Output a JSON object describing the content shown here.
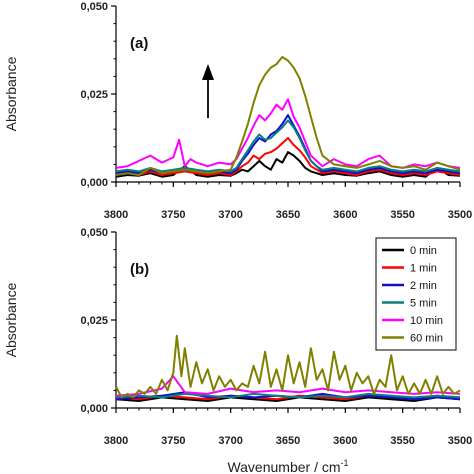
{
  "chart_data": [
    {
      "type": "line",
      "panel_label": "(a)",
      "ylabel": "Absorbance",
      "xlim": [
        3800,
        3500
      ],
      "ylim": [
        0,
        0.05
      ],
      "x_ticks": [
        "3800",
        "3750",
        "3700",
        "3650",
        "3600",
        "3550",
        "3500"
      ],
      "y_ticks": [
        "0,000",
        "0,025",
        "0,050"
      ],
      "annotation": "up-arrow",
      "series": [
        {
          "name": "0 min",
          "color": "#000000",
          "x": [
            3800,
            3790,
            3780,
            3770,
            3760,
            3750,
            3740,
            3730,
            3720,
            3710,
            3700,
            3695,
            3690,
            3685,
            3680,
            3675,
            3670,
            3665,
            3660,
            3655,
            3650,
            3645,
            3640,
            3635,
            3630,
            3625,
            3620,
            3610,
            3600,
            3590,
            3580,
            3570,
            3560,
            3550,
            3540,
            3530,
            3520,
            3510,
            3500
          ],
          "y": [
            0.0015,
            0.002,
            0.0018,
            0.0025,
            0.0015,
            0.002,
            0.0045,
            0.002,
            0.0015,
            0.002,
            0.0018,
            0.0025,
            0.0035,
            0.003,
            0.0045,
            0.006,
            0.0045,
            0.0035,
            0.0065,
            0.0055,
            0.0085,
            0.0075,
            0.006,
            0.004,
            0.003,
            0.0025,
            0.002,
            0.0025,
            0.002,
            0.0018,
            0.0025,
            0.003,
            0.002,
            0.0015,
            0.002,
            0.0015,
            0.004,
            0.002,
            0.0018
          ]
        },
        {
          "name": "1 min",
          "color": "#ff0000",
          "x": [
            3800,
            3790,
            3780,
            3770,
            3760,
            3750,
            3740,
            3730,
            3720,
            3710,
            3700,
            3695,
            3690,
            3685,
            3680,
            3675,
            3670,
            3665,
            3660,
            3655,
            3650,
            3645,
            3640,
            3635,
            3630,
            3625,
            3620,
            3610,
            3600,
            3590,
            3580,
            3570,
            3560,
            3550,
            3540,
            3530,
            3520,
            3510,
            3500
          ],
          "y": [
            0.002,
            0.0025,
            0.002,
            0.003,
            0.002,
            0.0025,
            0.003,
            0.0025,
            0.002,
            0.0025,
            0.002,
            0.003,
            0.0045,
            0.0055,
            0.0075,
            0.0065,
            0.008,
            0.0085,
            0.0095,
            0.011,
            0.0125,
            0.0105,
            0.009,
            0.007,
            0.0045,
            0.0035,
            0.0025,
            0.003,
            0.0025,
            0.002,
            0.003,
            0.0035,
            0.0025,
            0.002,
            0.0025,
            0.002,
            0.003,
            0.0025,
            0.002
          ]
        },
        {
          "name": "2 min",
          "color": "#1010cc",
          "x": [
            3800,
            3790,
            3780,
            3770,
            3760,
            3750,
            3740,
            3730,
            3720,
            3710,
            3700,
            3695,
            3690,
            3685,
            3680,
            3675,
            3670,
            3665,
            3660,
            3655,
            3650,
            3645,
            3640,
            3635,
            3630,
            3625,
            3620,
            3610,
            3600,
            3590,
            3580,
            3570,
            3560,
            3550,
            3540,
            3530,
            3520,
            3510,
            3500
          ],
          "y": [
            0.0025,
            0.003,
            0.0025,
            0.0035,
            0.0025,
            0.003,
            0.0035,
            0.003,
            0.0025,
            0.003,
            0.0025,
            0.0035,
            0.006,
            0.008,
            0.0105,
            0.0125,
            0.0115,
            0.0135,
            0.0145,
            0.0165,
            0.019,
            0.016,
            0.013,
            0.0095,
            0.006,
            0.0045,
            0.003,
            0.0035,
            0.003,
            0.0025,
            0.0035,
            0.004,
            0.003,
            0.0025,
            0.003,
            0.0025,
            0.0035,
            0.003,
            0.0025
          ]
        },
        {
          "name": "5 min",
          "color": "#0a7f7f",
          "x": [
            3800,
            3790,
            3780,
            3770,
            3760,
            3750,
            3740,
            3730,
            3720,
            3710,
            3700,
            3695,
            3690,
            3685,
            3680,
            3675,
            3670,
            3665,
            3660,
            3655,
            3650,
            3645,
            3640,
            3635,
            3630,
            3625,
            3620,
            3610,
            3600,
            3590,
            3580,
            3570,
            3560,
            3550,
            3540,
            3530,
            3520,
            3510,
            3500
          ],
          "y": [
            0.003,
            0.0035,
            0.003,
            0.004,
            0.003,
            0.0035,
            0.004,
            0.0035,
            0.003,
            0.0035,
            0.003,
            0.004,
            0.0065,
            0.009,
            0.0115,
            0.0135,
            0.012,
            0.0125,
            0.014,
            0.0155,
            0.0175,
            0.0155,
            0.0125,
            0.009,
            0.006,
            0.0045,
            0.0035,
            0.004,
            0.0035,
            0.003,
            0.004,
            0.0045,
            0.0035,
            0.003,
            0.0035,
            0.003,
            0.004,
            0.0035,
            0.003
          ]
        },
        {
          "name": "10 min",
          "color": "#ff00ff",
          "x": [
            3800,
            3790,
            3780,
            3770,
            3760,
            3750,
            3745,
            3740,
            3735,
            3730,
            3720,
            3710,
            3700,
            3695,
            3690,
            3685,
            3680,
            3675,
            3670,
            3665,
            3660,
            3655,
            3650,
            3645,
            3640,
            3635,
            3630,
            3625,
            3620,
            3610,
            3600,
            3590,
            3580,
            3570,
            3560,
            3550,
            3540,
            3530,
            3520,
            3510,
            3500
          ],
          "y": [
            0.004,
            0.0045,
            0.006,
            0.0075,
            0.0055,
            0.007,
            0.012,
            0.0045,
            0.0065,
            0.0055,
            0.0045,
            0.0055,
            0.005,
            0.0065,
            0.0095,
            0.0125,
            0.016,
            0.019,
            0.0175,
            0.0195,
            0.022,
            0.0205,
            0.0235,
            0.0185,
            0.0155,
            0.0115,
            0.0075,
            0.006,
            0.0045,
            0.0065,
            0.005,
            0.0045,
            0.0065,
            0.0075,
            0.0045,
            0.004,
            0.005,
            0.0045,
            0.0055,
            0.0045,
            0.004
          ]
        },
        {
          "name": "60 min",
          "color": "#808000",
          "x": [
            3800,
            3790,
            3780,
            3770,
            3760,
            3750,
            3740,
            3730,
            3720,
            3710,
            3700,
            3695,
            3690,
            3685,
            3680,
            3675,
            3670,
            3665,
            3660,
            3655,
            3650,
            3645,
            3640,
            3635,
            3630,
            3625,
            3620,
            3610,
            3600,
            3590,
            3580,
            3570,
            3560,
            3550,
            3540,
            3530,
            3520,
            3510,
            3500
          ],
          "y": [
            0.002,
            0.0025,
            0.002,
            0.004,
            0.0025,
            0.003,
            0.0035,
            0.003,
            0.0025,
            0.003,
            0.0035,
            0.007,
            0.0115,
            0.0165,
            0.0225,
            0.0275,
            0.0305,
            0.0325,
            0.0335,
            0.0355,
            0.0345,
            0.0325,
            0.0295,
            0.0245,
            0.0185,
            0.0125,
            0.0075,
            0.005,
            0.0045,
            0.004,
            0.005,
            0.006,
            0.0045,
            0.004,
            0.0045,
            0.0035,
            0.0055,
            0.0045,
            0.0035
          ]
        }
      ]
    },
    {
      "type": "line",
      "panel_label": "(b)",
      "ylabel": "Absorbance",
      "xlabel": "Wavenumber / cm",
      "xlabel_superscript": "-1",
      "xlim": [
        3800,
        3500
      ],
      "ylim": [
        0,
        0.05
      ],
      "x_ticks": [
        "3800",
        "3750",
        "3700",
        "3650",
        "3600",
        "3550",
        "3500"
      ],
      "y_ticks": [
        "0,000",
        "0,025",
        "0,050"
      ],
      "legend_position": "right",
      "series": [
        {
          "name": "0 min",
          "color": "#000000",
          "x": [
            3800,
            3780,
            3760,
            3740,
            3720,
            3700,
            3680,
            3660,
            3640,
            3620,
            3600,
            3580,
            3560,
            3540,
            3520,
            3500
          ],
          "y": [
            0.0025,
            0.002,
            0.003,
            0.0025,
            0.002,
            0.003,
            0.0025,
            0.002,
            0.003,
            0.0025,
            0.002,
            0.003,
            0.0025,
            0.002,
            0.003,
            0.0025
          ]
        },
        {
          "name": "1 min",
          "color": "#ff0000",
          "x": [
            3800,
            3780,
            3760,
            3740,
            3720,
            3700,
            3680,
            3660,
            3640,
            3620,
            3600,
            3580,
            3560,
            3540,
            3520,
            3500
          ],
          "y": [
            0.003,
            0.0025,
            0.0035,
            0.003,
            0.0025,
            0.0035,
            0.003,
            0.0025,
            0.0035,
            0.003,
            0.0025,
            0.0035,
            0.003,
            0.0025,
            0.0035,
            0.003
          ]
        },
        {
          "name": "2 min",
          "color": "#1010cc",
          "x": [
            3800,
            3780,
            3760,
            3740,
            3720,
            3700,
            3680,
            3660,
            3640,
            3620,
            3600,
            3580,
            3560,
            3540,
            3520,
            3500
          ],
          "y": [
            0.0025,
            0.003,
            0.0035,
            0.0045,
            0.003,
            0.0035,
            0.003,
            0.0035,
            0.003,
            0.004,
            0.003,
            0.0035,
            0.003,
            0.0025,
            0.003,
            0.0025
          ]
        },
        {
          "name": "5 min",
          "color": "#0a7f7f",
          "x": [
            3800,
            3780,
            3760,
            3740,
            3720,
            3700,
            3680,
            3660,
            3640,
            3620,
            3600,
            3580,
            3560,
            3540,
            3520,
            3500
          ],
          "y": [
            0.003,
            0.0035,
            0.003,
            0.004,
            0.0035,
            0.003,
            0.004,
            0.0035,
            0.003,
            0.0035,
            0.003,
            0.004,
            0.0035,
            0.003,
            0.0035,
            0.003
          ]
        },
        {
          "name": "10 min",
          "color": "#ff00ff",
          "x": [
            3800,
            3780,
            3760,
            3750,
            3740,
            3720,
            3700,
            3680,
            3660,
            3640,
            3620,
            3600,
            3580,
            3560,
            3540,
            3520,
            3500
          ],
          "y": [
            0.0035,
            0.004,
            0.0055,
            0.009,
            0.0045,
            0.004,
            0.0055,
            0.0045,
            0.005,
            0.0045,
            0.0055,
            0.0045,
            0.005,
            0.0045,
            0.004,
            0.0045,
            0.004
          ]
        },
        {
          "name": "60 min",
          "color": "#808000",
          "x": [
            3800,
            3795,
            3790,
            3785,
            3780,
            3775,
            3770,
            3765,
            3760,
            3755,
            3750,
            3747,
            3743,
            3740,
            3735,
            3730,
            3725,
            3720,
            3715,
            3710,
            3705,
            3700,
            3695,
            3690,
            3685,
            3680,
            3675,
            3670,
            3665,
            3660,
            3655,
            3650,
            3645,
            3640,
            3635,
            3630,
            3625,
            3620,
            3615,
            3610,
            3605,
            3600,
            3595,
            3590,
            3585,
            3580,
            3575,
            3570,
            3565,
            3560,
            3555,
            3550,
            3545,
            3540,
            3535,
            3530,
            3525,
            3520,
            3515,
            3510,
            3505,
            3500
          ],
          "y": [
            0.006,
            0.003,
            0.004,
            0.003,
            0.005,
            0.004,
            0.006,
            0.004,
            0.008,
            0.005,
            0.01,
            0.0205,
            0.009,
            0.017,
            0.006,
            0.013,
            0.007,
            0.011,
            0.005,
            0.009,
            0.006,
            0.008,
            0.005,
            0.007,
            0.006,
            0.012,
            0.007,
            0.016,
            0.006,
            0.011,
            0.005,
            0.015,
            0.007,
            0.013,
            0.006,
            0.017,
            0.008,
            0.011,
            0.005,
            0.016,
            0.008,
            0.012,
            0.005,
            0.01,
            0.007,
            0.009,
            0.004,
            0.008,
            0.006,
            0.015,
            0.005,
            0.009,
            0.004,
            0.007,
            0.004,
            0.008,
            0.004,
            0.009,
            0.004,
            0.006,
            0.004,
            0.005
          ]
        }
      ]
    }
  ]
}
